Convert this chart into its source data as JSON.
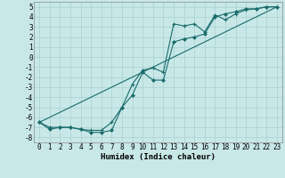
{
  "xlabel": "Humidex (Indice chaleur)",
  "ylabel": "",
  "bg_color": "#c8e8e8",
  "line_color": "#1a6b6b",
  "grid_color": "#a8d0d0",
  "xlim": [
    -0.5,
    23.5
  ],
  "ylim": [
    -8.5,
    5.5
  ],
  "xticks": [
    0,
    1,
    2,
    3,
    4,
    5,
    6,
    7,
    8,
    9,
    10,
    11,
    12,
    13,
    14,
    15,
    16,
    17,
    18,
    19,
    20,
    21,
    22,
    23
  ],
  "yticks": [
    5,
    4,
    3,
    2,
    1,
    0,
    -1,
    -2,
    -3,
    -4,
    -5,
    -6,
    -7,
    -8
  ],
  "line1_x": [
    0,
    1,
    2,
    3,
    4,
    5,
    6,
    7,
    8,
    9,
    10,
    11,
    12,
    13,
    14,
    15,
    16,
    17,
    18,
    19,
    20,
    21,
    22,
    23
  ],
  "line1_y": [
    -6.5,
    -7.0,
    -7.0,
    -7.0,
    -7.2,
    -7.3,
    -7.3,
    -6.5,
    -5.0,
    -2.7,
    -1.3,
    -1.1,
    -1.5,
    3.3,
    3.1,
    3.3,
    2.5,
    4.2,
    3.7,
    4.3,
    4.7,
    4.8,
    5.0,
    5.0
  ],
  "line2_x": [
    0,
    1,
    2,
    3,
    4,
    5,
    6,
    7,
    8,
    9,
    10,
    11,
    12,
    13,
    14,
    15,
    16,
    17,
    18,
    19,
    20,
    21,
    22,
    23
  ],
  "line2_y": [
    -6.5,
    -7.2,
    -7.0,
    -7.0,
    -7.2,
    -7.5,
    -7.5,
    -7.3,
    -5.0,
    -3.8,
    -1.5,
    -2.3,
    -2.3,
    1.5,
    1.8,
    2.0,
    2.3,
    4.0,
    4.3,
    4.5,
    4.8,
    4.8,
    5.0,
    5.0
  ],
  "line3_x": [
    0,
    23
  ],
  "line3_y": [
    -6.5,
    5.0
  ],
  "tick_fontsize": 5.5,
  "xlabel_fontsize": 6.5
}
